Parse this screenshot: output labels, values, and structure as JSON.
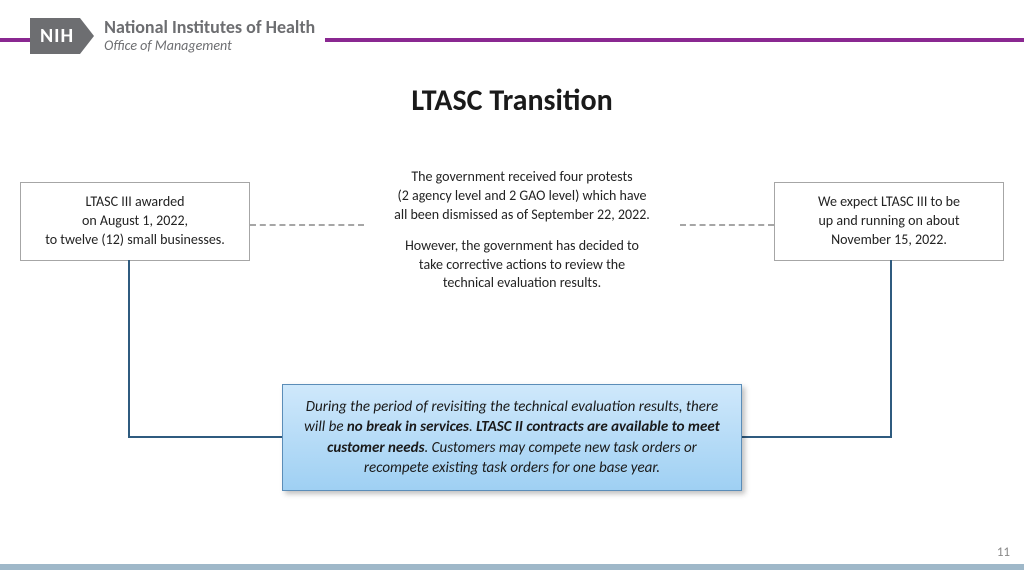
{
  "header": {
    "logo_text": "NIH",
    "org_main": "National Institutes of Health",
    "org_sub": "Office of Management",
    "bar_color": "#8a2891",
    "logo_bg": "#6d6e71"
  },
  "title": "LTASC Transition",
  "left_box": {
    "line1": "LTASC III awarded",
    "line2": "on August 1, 2022,",
    "line3": "to twelve (12) small businesses."
  },
  "right_box": {
    "line1": "We expect LTASC III to be",
    "line2": "up and running on about",
    "line3": "November 15, 2022."
  },
  "mid": {
    "p1l1": "The government received four protests",
    "p1l2": "(2 agency level and 2 GAO level) which have",
    "p1l3": "all been dismissed as of September 22, 2022.",
    "p2l1": "However, the government has decided to",
    "p2l2": "take corrective actions to review the",
    "p2l3": "technical evaluation results."
  },
  "callout": {
    "pre1": "During the period of revisiting the technical evaluation results, there will be ",
    "bold1": "no break in services",
    "sep": ". ",
    "bold2": "LTASC II contracts are available to meet customer needs",
    "post": ". Customers may compete new task orders or recompete existing task orders for one base year."
  },
  "page_number": "11",
  "colors": {
    "box_border": "#a6a6a6",
    "connector": "#2f5b7f",
    "callout_top": "#cfe8fb",
    "callout_bottom": "#9fd0f3",
    "callout_border": "#5b8db8",
    "footer_bar": "#9fb8c9"
  }
}
